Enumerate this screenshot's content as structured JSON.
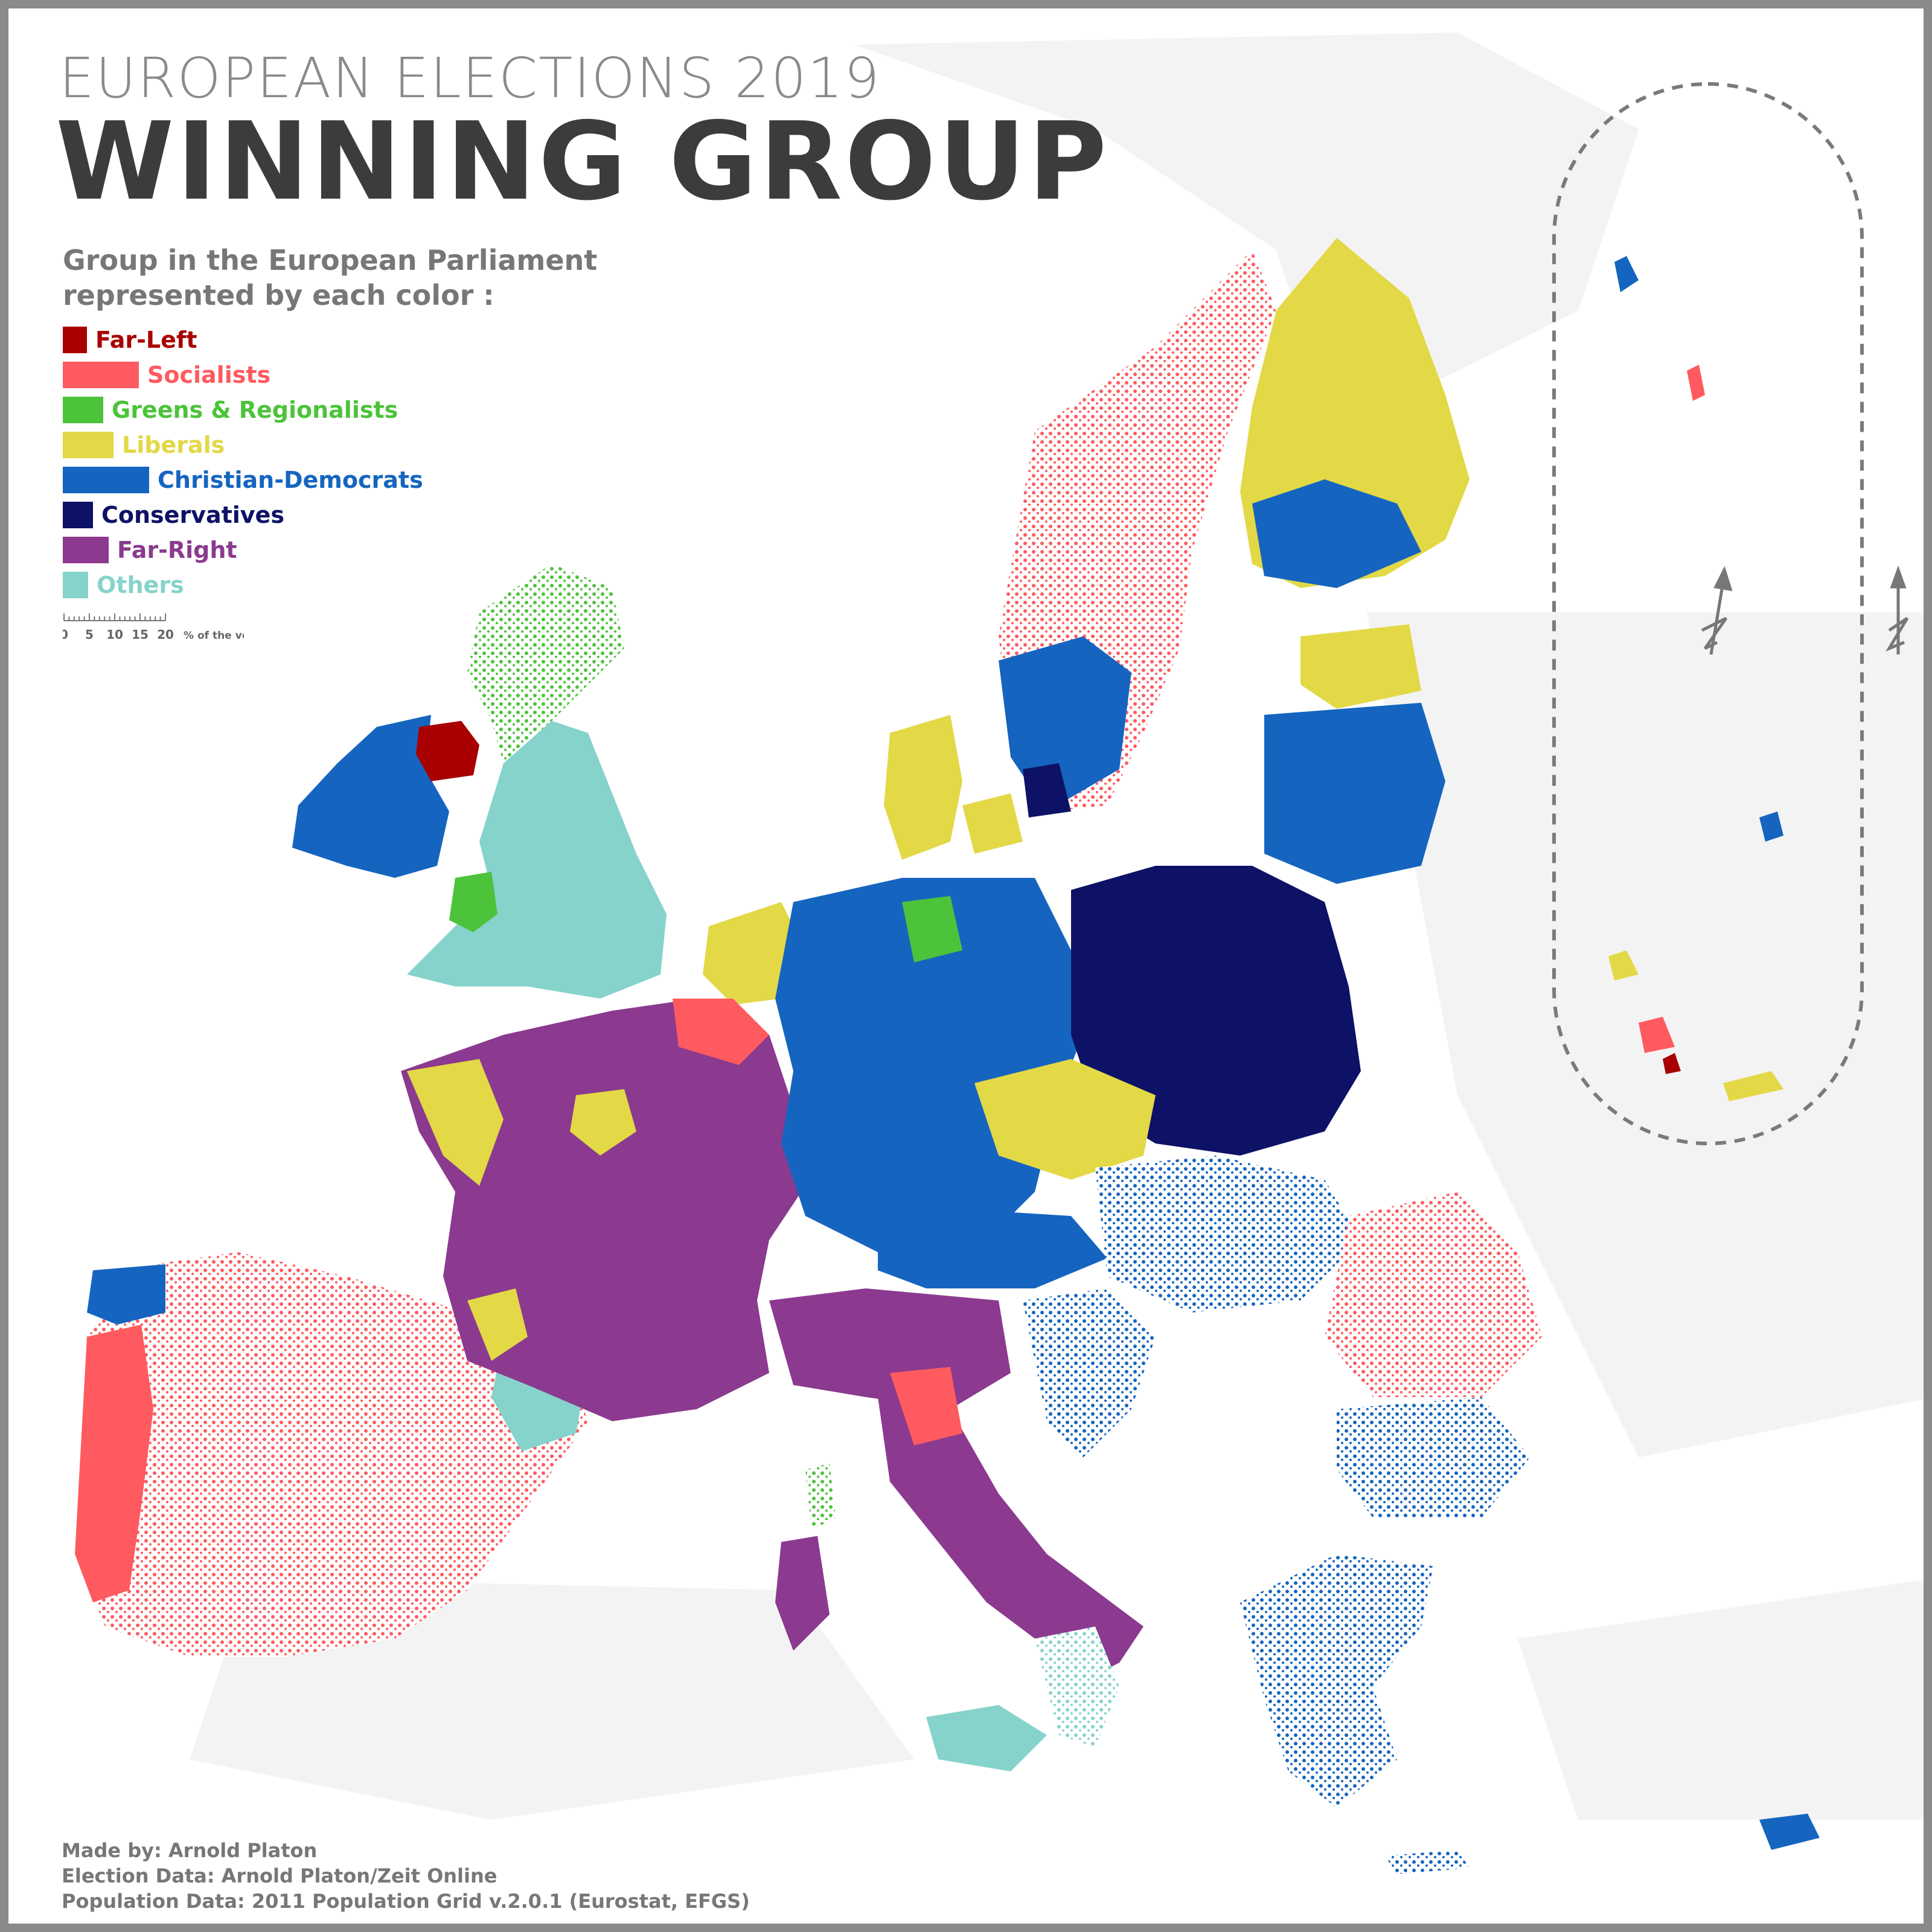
{
  "header": {
    "title_small": "EUROPEAN ELECTIONS 2019",
    "title_big": "WINNING GROUP"
  },
  "legend": {
    "heading_line1": "Group in the European Parliament",
    "heading_line2": "represented by each color :",
    "items": [
      {
        "label": "Far-Left",
        "color": "#a80000",
        "percent": 4
      },
      {
        "label": "Socialists",
        "color": "#ff5a5f",
        "percent": 15
      },
      {
        "label": "Greens & Regionalists",
        "color": "#4cc33a",
        "percent": 8
      },
      {
        "label": "Liberals",
        "color": "#e3d846",
        "percent": 10
      },
      {
        "label": "Christian-Democrats",
        "color": "#1565c0",
        "percent": 17
      },
      {
        "label": "Conservatives",
        "color": "#0d1266",
        "percent": 6
      },
      {
        "label": "Far-Right",
        "color": "#8b3a8f",
        "percent": 9
      },
      {
        "label": "Others",
        "color": "#86d3cb",
        "percent": 5
      }
    ]
  },
  "scale": {
    "ticks": [
      "0",
      "5",
      "10",
      "15",
      "20"
    ],
    "unit": "% of the vote"
  },
  "credits": {
    "line1": "Made by: Arnold Platon",
    "line2": "Election Data: Arnold Platon/Zeit Online",
    "line3": "Population Data: 2011 Population Grid v.2.0.1 (Eurostat, EFGS)"
  },
  "map_colors": {
    "background_land": "#f2f2f2",
    "sea": "#ffffff",
    "inset_border": "#7a7a7a"
  }
}
